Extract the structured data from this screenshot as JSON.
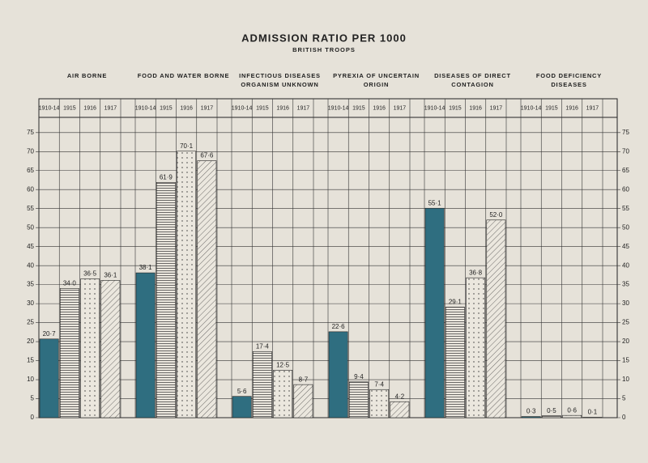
{
  "chart_data": {
    "type": "bar",
    "title": "ADMISSION RATIO PER 1000",
    "subtitle": "BRITISH TROOPS",
    "categories": [
      "AIR BORNE",
      "FOOD AND WATER BORNE",
      "INFECTIOUS DISEASES ORGANISM UNKNOWN",
      "PYREXIA OF UNCERTAIN ORIGIN",
      "DISEASES OF DIRECT CONTAGION",
      "FOOD DEFICIENCY DISEASES"
    ],
    "series": [
      {
        "name": "1910-14",
        "color": "#2f6e80",
        "pattern": "solid",
        "values": [
          20.7,
          38.1,
          5.6,
          22.6,
          55.1,
          0.3
        ],
        "value_labels": [
          "20·7",
          "38·1",
          "5·6",
          "22·6",
          "55·1",
          "0·3"
        ]
      },
      {
        "name": "1915",
        "color": "#222222",
        "pattern": "horizontal",
        "values": [
          34.0,
          61.9,
          17.4,
          9.4,
          29.1,
          0.5
        ],
        "value_labels": [
          "34·0",
          "61·9",
          "17·4",
          "9·4",
          "29·1",
          "0·5"
        ]
      },
      {
        "name": "1916",
        "color": "#222222",
        "pattern": "dots",
        "values": [
          36.5,
          70.1,
          12.5,
          7.4,
          36.8,
          0.6
        ],
        "value_labels": [
          "36·5",
          "70·1",
          "12·5",
          "7·4",
          "36·8",
          "0·6"
        ]
      },
      {
        "name": "1917",
        "color": "#222222",
        "pattern": "diagonal",
        "values": [
          36.1,
          67.6,
          8.7,
          4.2,
          52.0,
          0.1
        ],
        "value_labels": [
          "36·1",
          "67·6",
          "8·7",
          "4·2",
          "52·0",
          "0·1"
        ]
      }
    ],
    "ylim": [
      0,
      79
    ],
    "yticks": [
      0,
      5,
      10,
      15,
      20,
      25,
      30,
      35,
      40,
      45,
      50,
      55,
      60,
      65,
      70,
      75
    ],
    "grid": true
  }
}
